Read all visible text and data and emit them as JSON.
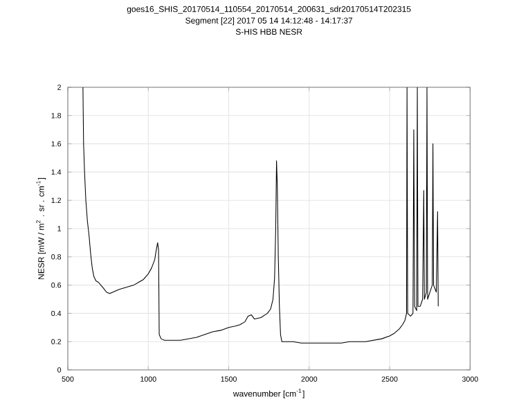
{
  "chart_data": {
    "type": "line",
    "title": "goes16_SHIS_20170514_110554_20170514_200631_sdr20170514T202315",
    "subtitle": "Segment [22] 2017 05 14 14:12:48 - 14:17:37",
    "annotations": [
      "S-HIS HBB NESR"
    ],
    "xlabel": "wavenumber [cm$^{-1}$]",
    "ylabel": "NESR [mW / m$^{2}$ . sr . cm$^{-1}$]",
    "xlim": [
      500,
      3000
    ],
    "xticks": [
      500,
      1000,
      1500,
      2000,
      2500,
      3000
    ],
    "ylim": [
      0,
      2
    ],
    "yticks": [
      0,
      0.2,
      0.4,
      0.6,
      0.8,
      1,
      1.2,
      1.4,
      1.6,
      1.8,
      2
    ],
    "grid": true,
    "marker": "none",
    "line_style": "solid",
    "series": [
      {
        "color": "#000000",
        "x": [
          594,
          598,
          604,
          612,
          622,
          632,
          642,
          652,
          662,
          675,
          690,
          705,
          720,
          740,
          760,
          780,
          800,
          820,
          850,
          880,
          910,
          940,
          970,
          1000,
          1020,
          1040,
          1050,
          1058,
          1064,
          1068,
          1080,
          1100,
          1150,
          1200,
          1250,
          1300,
          1350,
          1400,
          1450,
          1500,
          1540,
          1570,
          1600,
          1620,
          1640,
          1660,
          1700,
          1740,
          1760,
          1775,
          1785,
          1792,
          1797,
          1802,
          1808,
          1815,
          1822,
          1830,
          1850,
          1900,
          1950,
          2000,
          2050,
          2100,
          2150,
          2200,
          2250,
          2300,
          2350,
          2400,
          2450,
          2500,
          2530,
          2560,
          2580,
          2595,
          2605,
          2608,
          2612,
          2630,
          2645,
          2650,
          2655,
          2668,
          2672,
          2676,
          2690,
          2705,
          2712,
          2716,
          2728,
          2732,
          2736,
          2750,
          2765,
          2769,
          2773,
          2790,
          2798,
          2802
        ],
        "values": [
          2.0,
          1.6,
          1.4,
          1.2,
          1.05,
          0.95,
          0.82,
          0.72,
          0.66,
          0.63,
          0.62,
          0.6,
          0.58,
          0.55,
          0.54,
          0.55,
          0.56,
          0.57,
          0.58,
          0.59,
          0.6,
          0.62,
          0.64,
          0.68,
          0.72,
          0.78,
          0.85,
          0.9,
          0.85,
          0.25,
          0.22,
          0.21,
          0.21,
          0.21,
          0.22,
          0.23,
          0.25,
          0.27,
          0.28,
          0.3,
          0.31,
          0.32,
          0.34,
          0.38,
          0.39,
          0.36,
          0.37,
          0.4,
          0.43,
          0.5,
          0.65,
          1.0,
          1.48,
          1.3,
          0.8,
          0.45,
          0.25,
          0.2,
          0.2,
          0.2,
          0.19,
          0.19,
          0.19,
          0.19,
          0.19,
          0.19,
          0.2,
          0.2,
          0.2,
          0.21,
          0.22,
          0.24,
          0.26,
          0.29,
          0.32,
          0.35,
          0.4,
          2.0,
          0.4,
          0.38,
          0.4,
          1.7,
          0.45,
          0.42,
          2.0,
          0.45,
          0.45,
          0.5,
          1.27,
          0.5,
          0.55,
          2.0,
          0.5,
          0.55,
          0.6,
          1.6,
          0.6,
          0.55,
          1.12,
          0.45
        ]
      }
    ]
  }
}
